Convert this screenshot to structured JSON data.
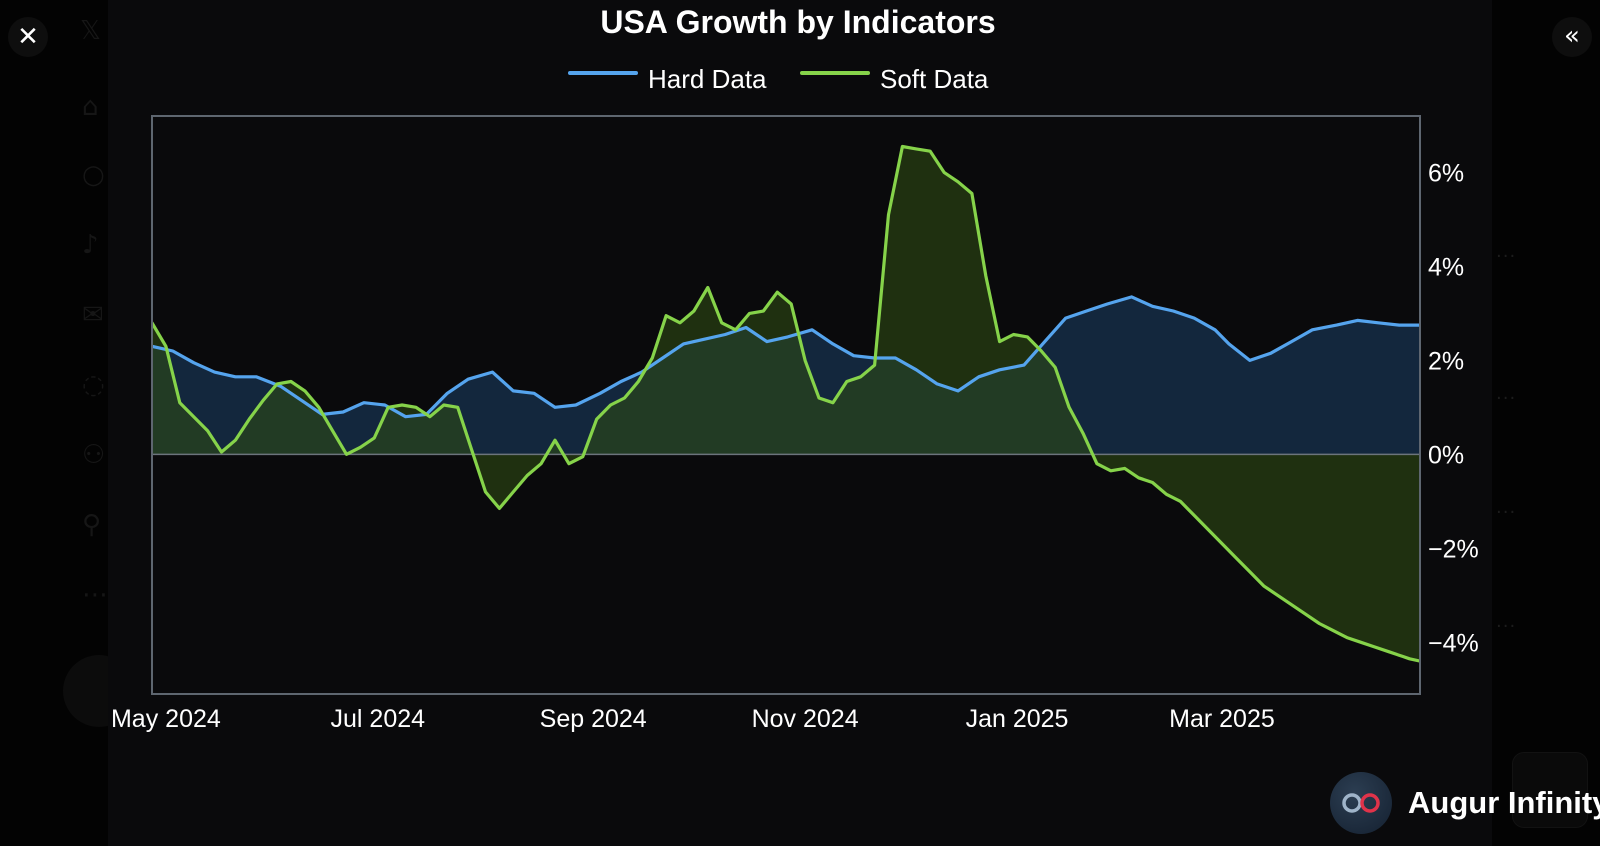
{
  "viewer": {
    "close_icon": "close-icon",
    "collapse_icon": "double-chevron-left-icon"
  },
  "brand": {
    "name": "Augur Infinity",
    "logo_icon": "infinity-logo-icon"
  },
  "chart_data": {
    "type": "line",
    "title": "USA Growth by Indicators",
    "xlabel": "",
    "ylabel": "",
    "x_tick_labels": [
      "May 2024",
      "Jul 2024",
      "Sep 2024",
      "Nov 2024",
      "Jan 2025",
      "Mar 2025"
    ],
    "x_tick_dates": [
      "2024-05-01",
      "2024-07-01",
      "2024-09-01",
      "2024-11-01",
      "2025-01-01",
      "2025-03-01"
    ],
    "x_range": [
      "2024-04-27",
      "2025-04-27"
    ],
    "y_ticks": [
      6,
      4,
      2,
      0,
      -2,
      -4
    ],
    "y_tick_labels": [
      "6%",
      "4%",
      "2%",
      "0%",
      "−2%",
      "−4%"
    ],
    "ylim": [
      -5.1,
      7.2
    ],
    "y_axis_side": "right",
    "legend_position": "top-center",
    "grid": false,
    "zero_line": true,
    "fill_to_zero": true,
    "background": "#0a0a0c",
    "series": [
      {
        "name": "Hard Data",
        "color": "#55a4ee",
        "fill": "#1c3f66",
        "x": [
          "2024-04-27",
          "2024-05-03",
          "2024-05-09",
          "2024-05-15",
          "2024-05-21",
          "2024-05-27",
          "2024-06-03",
          "2024-06-09",
          "2024-06-15",
          "2024-06-21",
          "2024-06-27",
          "2024-07-03",
          "2024-07-09",
          "2024-07-15",
          "2024-07-21",
          "2024-07-27",
          "2024-08-03",
          "2024-08-09",
          "2024-08-15",
          "2024-08-21",
          "2024-08-27",
          "2024-09-03",
          "2024-09-09",
          "2024-09-15",
          "2024-09-21",
          "2024-09-27",
          "2024-10-03",
          "2024-10-09",
          "2024-10-15",
          "2024-10-21",
          "2024-10-27",
          "2024-11-03",
          "2024-11-09",
          "2024-11-15",
          "2024-11-21",
          "2024-11-27",
          "2024-12-03",
          "2024-12-09",
          "2024-12-15",
          "2024-12-21",
          "2024-12-27",
          "2025-01-03",
          "2025-01-09",
          "2025-01-15",
          "2025-01-21",
          "2025-01-27",
          "2025-02-03",
          "2025-02-09",
          "2025-02-15",
          "2025-02-21",
          "2025-02-27",
          "2025-03-03",
          "2025-03-09",
          "2025-03-15",
          "2025-03-21",
          "2025-03-27",
          "2025-04-03",
          "2025-04-09",
          "2025-04-15",
          "2025-04-21",
          "2025-04-27"
        ],
        "values": [
          2.3,
          2.2,
          1.95,
          1.75,
          1.65,
          1.65,
          1.45,
          1.15,
          0.85,
          0.9,
          1.1,
          1.05,
          0.8,
          0.85,
          1.3,
          1.6,
          1.75,
          1.35,
          1.3,
          1.0,
          1.05,
          1.3,
          1.55,
          1.75,
          2.05,
          2.35,
          2.45,
          2.55,
          2.7,
          2.4,
          2.5,
          2.65,
          2.35,
          2.1,
          2.05,
          2.05,
          1.8,
          1.5,
          1.35,
          1.65,
          1.8,
          1.9,
          2.4,
          2.9,
          3.05,
          3.2,
          3.35,
          3.15,
          3.05,
          2.9,
          2.65,
          2.35,
          2.0,
          2.15,
          2.4,
          2.65,
          2.75,
          2.85,
          2.8,
          2.75,
          2.75
        ]
      },
      {
        "name": "Soft Data",
        "color": "#86d34a",
        "fill": "#2d4a14",
        "x": [
          "2024-04-27",
          "2024-05-01",
          "2024-05-05",
          "2024-05-09",
          "2024-05-13",
          "2024-05-17",
          "2024-05-21",
          "2024-05-25",
          "2024-05-29",
          "2024-06-02",
          "2024-06-06",
          "2024-06-10",
          "2024-06-14",
          "2024-06-18",
          "2024-06-22",
          "2024-06-26",
          "2024-06-30",
          "2024-07-04",
          "2024-07-08",
          "2024-07-12",
          "2024-07-16",
          "2024-07-20",
          "2024-07-24",
          "2024-07-28",
          "2024-08-01",
          "2024-08-05",
          "2024-08-09",
          "2024-08-13",
          "2024-08-17",
          "2024-08-21",
          "2024-08-25",
          "2024-08-29",
          "2024-09-02",
          "2024-09-06",
          "2024-09-10",
          "2024-09-14",
          "2024-09-18",
          "2024-09-22",
          "2024-09-26",
          "2024-09-30",
          "2024-10-04",
          "2024-10-08",
          "2024-10-12",
          "2024-10-16",
          "2024-10-20",
          "2024-10-24",
          "2024-10-28",
          "2024-11-01",
          "2024-11-05",
          "2024-11-09",
          "2024-11-13",
          "2024-11-17",
          "2024-11-21",
          "2024-11-25",
          "2024-11-29",
          "2024-12-03",
          "2024-12-07",
          "2024-12-11",
          "2024-12-15",
          "2024-12-19",
          "2024-12-23",
          "2024-12-27",
          "2024-12-31",
          "2025-01-04",
          "2025-01-08",
          "2025-01-12",
          "2025-01-16",
          "2025-01-20",
          "2025-01-24",
          "2025-01-28",
          "2025-02-01",
          "2025-02-05",
          "2025-02-09",
          "2025-02-13",
          "2025-02-17",
          "2025-02-21",
          "2025-02-25",
          "2025-03-01",
          "2025-03-05",
          "2025-03-09",
          "2025-03-13",
          "2025-03-17",
          "2025-03-21",
          "2025-03-25",
          "2025-03-29",
          "2025-04-02",
          "2025-04-06",
          "2025-04-10",
          "2025-04-14",
          "2025-04-18",
          "2025-04-22",
          "2025-04-24",
          "2025-04-27"
        ],
        "values": [
          2.8,
          2.3,
          1.1,
          0.8,
          0.5,
          0.05,
          0.3,
          0.75,
          1.15,
          1.5,
          1.55,
          1.35,
          1.0,
          0.5,
          0.0,
          0.15,
          0.35,
          1.0,
          1.05,
          1.0,
          0.8,
          1.05,
          1.0,
          0.1,
          -0.8,
          -1.15,
          -0.8,
          -0.45,
          -0.2,
          0.3,
          -0.2,
          -0.05,
          0.75,
          1.05,
          1.2,
          1.55,
          2.05,
          2.95,
          2.8,
          3.05,
          3.55,
          2.8,
          2.65,
          3.0,
          3.05,
          3.45,
          3.2,
          2.0,
          1.2,
          1.1,
          1.55,
          1.65,
          1.9,
          5.1,
          6.55,
          6.5,
          6.45,
          6.0,
          5.8,
          5.55,
          3.8,
          2.4,
          2.55,
          2.5,
          2.2,
          1.85,
          1.0,
          0.45,
          -0.2,
          -0.35,
          -0.3,
          -0.5,
          -0.6,
          -0.85,
          -1.0,
          -1.3,
          -1.6,
          -1.9,
          -2.2,
          -2.5,
          -2.8,
          -3.0,
          -3.2,
          -3.4,
          -3.6,
          -3.75,
          -3.9,
          -4.0,
          -4.1,
          -4.2,
          -4.3,
          -4.35,
          -4.4
        ]
      }
    ]
  }
}
